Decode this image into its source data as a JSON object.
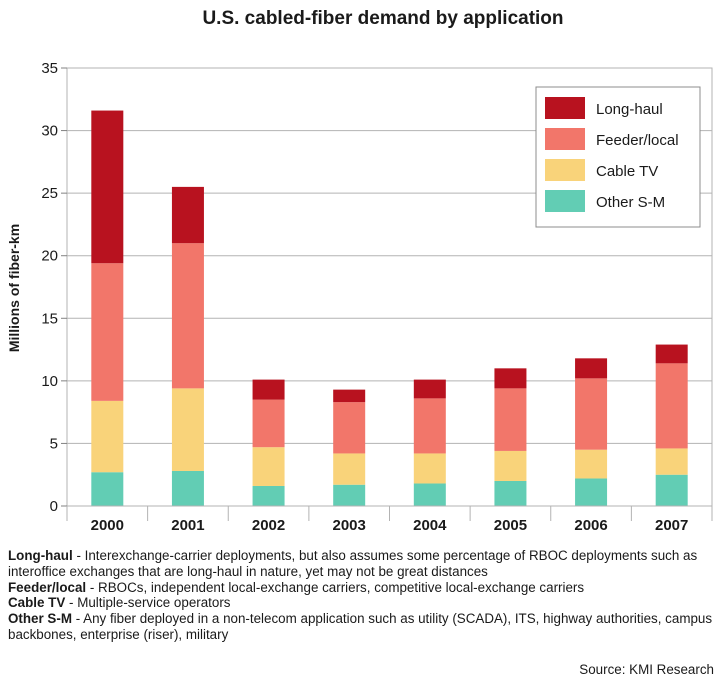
{
  "chart_data": {
    "type": "bar",
    "stacked": true,
    "title": "U.S. cabled-fiber demand by application",
    "ylabel": "Millions of fiber-km",
    "xlabel": "",
    "ylim": [
      0,
      35
    ],
    "yticks": [
      0,
      5,
      10,
      15,
      20,
      25,
      30,
      35
    ],
    "grid": true,
    "legend_position": "top-right",
    "categories": [
      "2000",
      "2001",
      "2002",
      "2003",
      "2004",
      "2005",
      "2006",
      "2007"
    ],
    "series": [
      {
        "name": "Other S-M",
        "color": "#62cdb4",
        "values": [
          2.7,
          2.8,
          1.6,
          1.7,
          1.8,
          2.0,
          2.2,
          2.5
        ]
      },
      {
        "name": "Cable TV",
        "color": "#f9d37a",
        "values": [
          5.7,
          6.6,
          3.1,
          2.5,
          2.4,
          2.4,
          2.3,
          2.1
        ]
      },
      {
        "name": "Feeder/local",
        "color": "#f2766a",
        "values": [
          11.0,
          11.6,
          3.8,
          4.1,
          4.4,
          5.0,
          5.7,
          6.8
        ]
      },
      {
        "name": "Long-haul",
        "color": "#b8121f",
        "values": [
          12.2,
          4.5,
          1.6,
          1.0,
          1.5,
          1.6,
          1.6,
          1.5
        ]
      }
    ],
    "legend_order": [
      "Long-haul",
      "Feeder/local",
      "Cable TV",
      "Other S-M"
    ]
  },
  "notes": [
    {
      "term": "Long-haul",
      "text": " - Interexchange-carrier deployments, but also assumes some percentage of RBOC deployments such as interoffice exchanges that are long-haul in nature, yet may not be great distances"
    },
    {
      "term": "Feeder/local",
      "text": " - RBOCs, independent local-exchange carriers, competitive  local-exchange carriers"
    },
    {
      "term": "Cable TV",
      "text": " - Multiple-service operators"
    },
    {
      "term": "Other S-M",
      "text": " - Any fiber deployed in a non-telecom application such as utility (SCADA), ITS, highway authorities, campus backbones, enterprise (riser), military"
    }
  ],
  "source": "Source: KMI Research"
}
